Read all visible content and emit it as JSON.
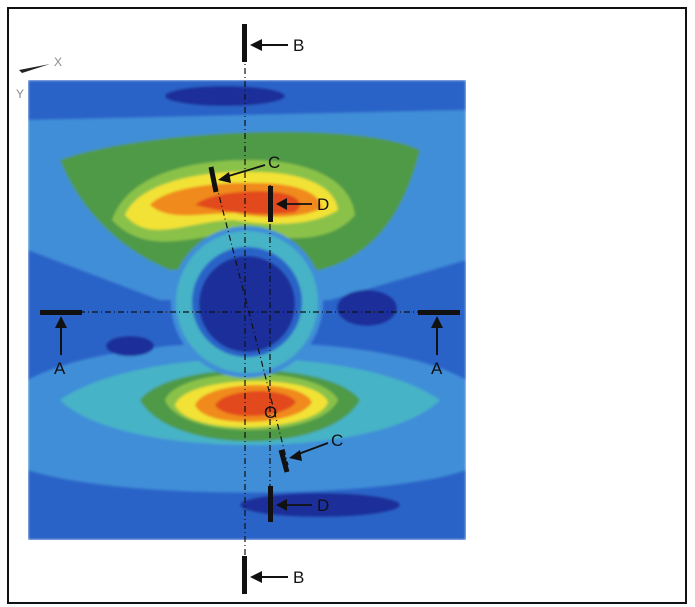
{
  "figure": {
    "axis_indicator": {
      "x_label": "X",
      "y_label": "Y"
    },
    "sections": {
      "A_left": "A",
      "A_right": "A",
      "B_top": "B",
      "B_bottom": "B",
      "C_top": "C",
      "C_bottom": "C",
      "D_top": "D",
      "D_bottom": "D"
    },
    "center_point": "O",
    "colors": {
      "deep_blue": "#1b2f9a",
      "blue": "#2a63c8",
      "light_blue": "#3f8ed8",
      "cyan": "#47b3c6",
      "teal": "#3f9f8a",
      "green": "#4f9a46",
      "light_green": "#8ac24a",
      "yellow": "#f2e235",
      "orange": "#f08a1f",
      "red": "#e24a1c"
    }
  }
}
